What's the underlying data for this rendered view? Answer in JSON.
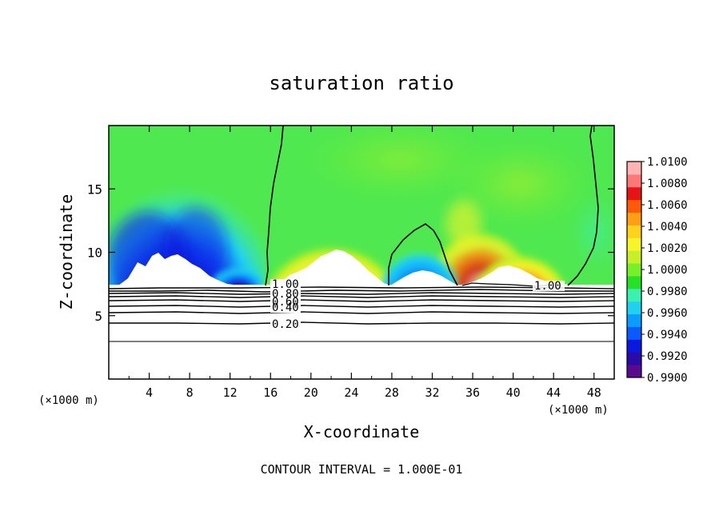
{
  "chart_data": {
    "type": "heatmap",
    "title": "saturation ratio",
    "xlabel": "X-coordinate",
    "ylabel": "Z-coordinate",
    "x_unit": "(×1000 m)",
    "x_unit_right": "(×1000 m)",
    "footer": "CONTOUR INTERVAL = 1.000E-01",
    "xlim": [
      0,
      50
    ],
    "ylim": [
      0,
      20
    ],
    "x_ticks": [
      4,
      8,
      12,
      16,
      20,
      24,
      28,
      32,
      36,
      40,
      44,
      48
    ],
    "x_tick_labels": [
      "4",
      "8",
      "12",
      "16",
      "20",
      "24",
      "28",
      "32",
      "36",
      "40",
      "44",
      "48"
    ],
    "y_ticks": [
      5,
      10,
      15
    ],
    "y_tick_labels": [
      "5",
      "10",
      "15"
    ],
    "grid": false,
    "colorbar": {
      "placement": "right",
      "min": 0.99,
      "max": 1.01,
      "labels": [
        "1.0100",
        "1.0080",
        "1.0060",
        "1.0040",
        "1.0020",
        "1.0000",
        "0.9980",
        "0.9960",
        "0.9940",
        "0.9920",
        "0.9900"
      ],
      "colors": [
        "#5a0a8c",
        "#2a0aa8",
        "#0a18e0",
        "#0a5aff",
        "#0a9cff",
        "#20d2f0",
        "#3cf0b0",
        "#28e028",
        "#78f028",
        "#c8f028",
        "#f5f52a",
        "#ffd21e",
        "#ffa014",
        "#ff5a0a",
        "#e61414",
        "#ff7878",
        "#ffb4b4"
      ]
    },
    "contour_labels": [
      "1.00",
      "0.80",
      "0.60",
      "0.40",
      "0.20",
      "1.00"
    ],
    "contour_levels": [
      0.2,
      0.4,
      0.6,
      0.8,
      1.0
    ],
    "contour_heights_km": [
      2.9,
      4.3,
      5.0,
      5.6,
      6.0,
      6.4,
      6.7,
      6.9,
      7.1
    ]
  }
}
